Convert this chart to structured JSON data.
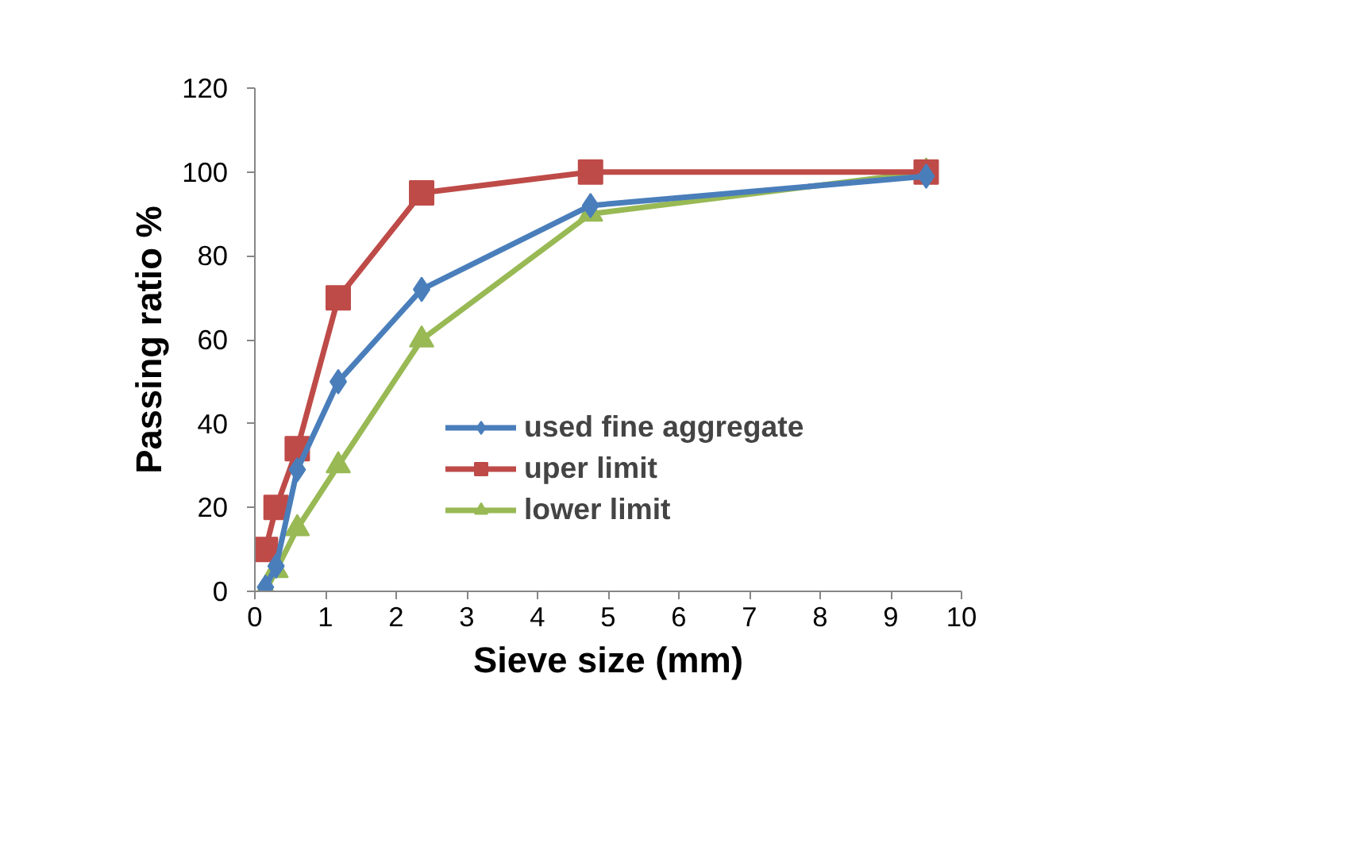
{
  "chart_data": {
    "type": "line",
    "xlabel": "Sieve size (mm)",
    "ylabel": "Passing ratio %",
    "xlim": [
      0,
      10
    ],
    "xticks": [
      0,
      1,
      2,
      3,
      4,
      5,
      6,
      7,
      8,
      9,
      10
    ],
    "ylim": [
      0,
      120
    ],
    "yticks": [
      0,
      20,
      40,
      60,
      80,
      100,
      120
    ],
    "grid": false,
    "legend": "right",
    "x": [
      0.15,
      0.3,
      0.6,
      1.18,
      2.36,
      4.75,
      9.5
    ],
    "series": [
      {
        "name": "used fine aggregate",
        "color": "#4a7ebb",
        "marker": "diamond",
        "values": [
          1,
          6,
          29,
          50,
          72,
          92,
          99
        ]
      },
      {
        "name": "uper limit",
        "color": "#be4b48",
        "marker": "square",
        "values": [
          10,
          20,
          34,
          70,
          95,
          100,
          100
        ]
      },
      {
        "name": "lower limit",
        "color": "#98b954",
        "marker": "triangle",
        "values": [
          0,
          5,
          15,
          30,
          60,
          90,
          100
        ]
      }
    ]
  }
}
